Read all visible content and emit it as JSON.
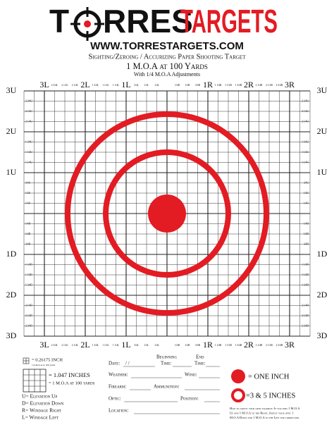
{
  "header": {
    "logo": {
      "first": "T",
      "middle": "RRES",
      "brand": "TARGETS"
    },
    "website": "WWW.TORRESTARGETS.COM",
    "subtitle": "Sighting/Zeroing / Accurizing Paper Shooting Target",
    "moa_line": "1 M.O.A at 100 Yards",
    "adjust_line": "With 1/4 M.O.A Adjustments"
  },
  "grid": {
    "x_labels": [
      "3L",
      "2 3/4L",
      "2 1/2L",
      "2 1/4L",
      "2L",
      "1 3/4L",
      "1 1/2L",
      "1 1/4L",
      "1L",
      "3/4L",
      "1/2L",
      "1/4L",
      null,
      "1/4R",
      "1/2R",
      "3/4R",
      "1R",
      "1 1/4R",
      "1 1/2R",
      "1 3/4R",
      "2R",
      "2 1/4R",
      "2 1/2R",
      "2 3/4R",
      "3R"
    ],
    "y_labels": [
      "3U",
      "2 3/4U",
      "2 1/2U",
      "2 1/4U",
      "2U",
      "1 3/4U",
      "1 1/2U",
      "1 1/4U",
      "1U",
      "3/4U",
      "1/2U",
      "1/4U",
      null,
      "1/4D",
      "1/2D",
      "3/4D",
      "1D",
      "1 1/4D",
      "1 1/2D",
      "1 3/4D",
      "2D",
      "2 1/4D",
      "2 1/2D",
      "2 3/4D",
      "3D"
    ]
  },
  "legend": {
    "small_box": "= 0.26175 INCH",
    "small_box_note": "1/4 M.O.A at 100 yards",
    "big_box": "= 1.047 INCHES",
    "big_box_note": "= 1 M.O.A at 100 yards",
    "keys": [
      "U= Elevation Up",
      "D= Elevation Down",
      "R= Windage Right",
      "L= Windage Left"
    ]
  },
  "form": {
    "date": "Date:",
    "date_slashes": "/     /",
    "beginning": "Beginning",
    "beginning_time": "Time:",
    "end": "End",
    "end_time": "Time:",
    "weather": "Weather:",
    "wind": "Wind:",
    "firearm": "Firearm:",
    "ammunition": "Ammunition:",
    "optic": "Optic:",
    "position": "Position:",
    "location": "Location:"
  },
  "key_right": {
    "dot": "= ONE INCH",
    "rings": "=3 & 5 INCHES",
    "instructions": [
      "How to adjust your optic example: If you miss 1 M.O.A",
      "Up and 1 M.O.A to the Right, Adjust your optic 1",
      "M.O.A Down and 1 M.O.A to the Left for correction."
    ]
  }
}
